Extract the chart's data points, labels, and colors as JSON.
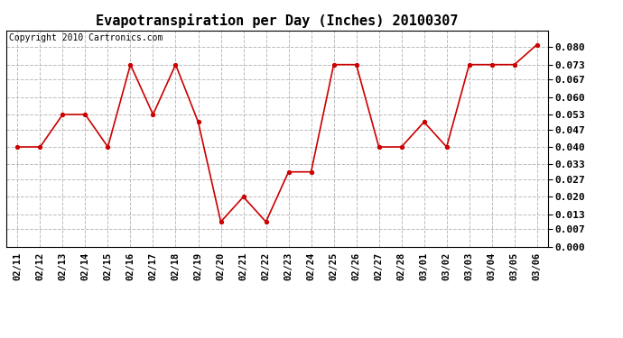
{
  "title": "Evapotranspiration per Day (Inches) 20100307",
  "copyright_text": "Copyright 2010 Cartronics.com",
  "dates": [
    "02/11",
    "02/12",
    "02/13",
    "02/14",
    "02/15",
    "02/16",
    "02/17",
    "02/18",
    "02/19",
    "02/20",
    "02/21",
    "02/22",
    "02/23",
    "02/24",
    "02/25",
    "02/26",
    "02/27",
    "02/28",
    "03/01",
    "03/02",
    "03/03",
    "03/04",
    "03/05",
    "03/06"
  ],
  "values": [
    0.04,
    0.04,
    0.053,
    0.053,
    0.04,
    0.073,
    0.053,
    0.073,
    0.05,
    0.01,
    0.02,
    0.01,
    0.03,
    0.03,
    0.073,
    0.073,
    0.04,
    0.04,
    0.05,
    0.04,
    0.073,
    0.073,
    0.073,
    0.081
  ],
  "line_color": "#cc0000",
  "marker": "o",
  "marker_size": 3,
  "ylim": [
    0.0,
    0.0867
  ],
  "yticks": [
    0.0,
    0.007,
    0.013,
    0.02,
    0.027,
    0.033,
    0.04,
    0.047,
    0.053,
    0.06,
    0.067,
    0.073,
    0.08
  ],
  "grid_color": "#bbbbbb",
  "bg_color": "#ffffff",
  "plot_bg_color": "#ffffff",
  "title_fontsize": 11,
  "copyright_fontsize": 7,
  "tick_fontsize": 7.5,
  "ytick_fontsize": 8
}
